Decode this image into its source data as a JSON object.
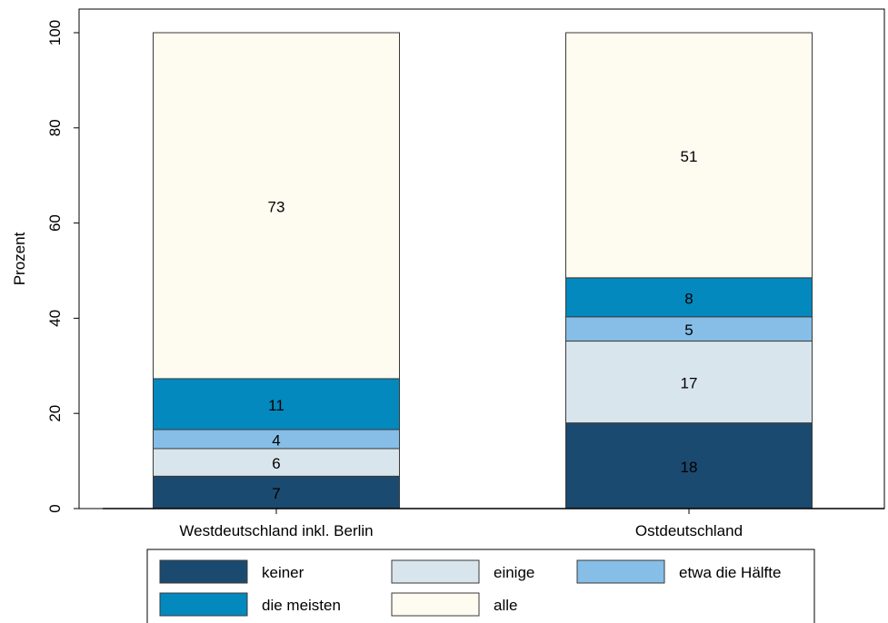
{
  "chart_data": {
    "type": "bar",
    "stacked": true,
    "categories": [
      "Westdeutschland inkl. Berlin",
      "Ostdeutschland"
    ],
    "series": [
      {
        "name": "keiner",
        "values": [
          7,
          18
        ],
        "color": "#1b4a70"
      },
      {
        "name": "einige",
        "values": [
          6,
          17
        ],
        "color": "#d9e5ec"
      },
      {
        "name": "etwa die Hälfte",
        "values": [
          4,
          5
        ],
        "color": "#86bee7"
      },
      {
        "name": "die meisten",
        "values": [
          11,
          8
        ],
        "color": "#0389bd"
      },
      {
        "name": "alle",
        "values": [
          73,
          51
        ],
        "color": "#fefbf0"
      }
    ],
    "segment_bounds": [
      [
        [
          0,
          6.8
        ],
        [
          6.8,
          12.6
        ],
        [
          12.6,
          16.6
        ],
        [
          16.6,
          27.3
        ],
        [
          27.3,
          100
        ]
      ],
      [
        [
          0,
          18
        ],
        [
          18,
          35.2
        ],
        [
          35.2,
          40.3
        ],
        [
          40.3,
          48.5
        ],
        [
          48.5,
          100
        ]
      ]
    ],
    "ylabel": "Prozent",
    "ylim": [
      0,
      100
    ],
    "yticks": [
      0,
      20,
      40,
      60,
      80,
      100
    ],
    "ytick_labels": [
      "0",
      "20",
      "40",
      "60",
      "80",
      "100"
    ],
    "grid": false,
    "legend_position": "bottom",
    "legend_order": [
      "keiner",
      "einige",
      "etwa die Hälfte",
      "die meisten",
      "alle"
    ]
  }
}
